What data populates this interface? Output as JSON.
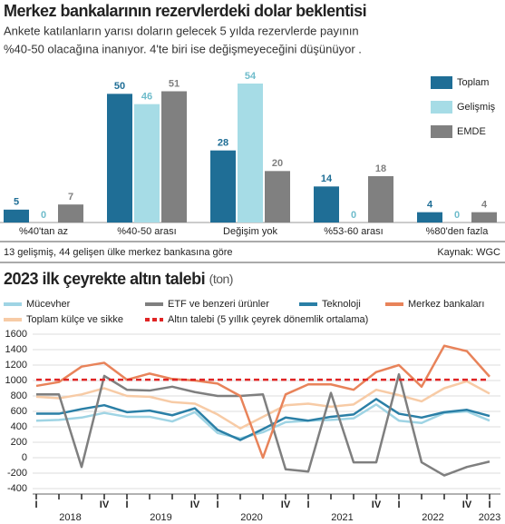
{
  "chart_data": [
    {
      "type": "bar",
      "title": "Merkez bankalarının rezervlerdeki dolar beklentisi",
      "subtitle": [
        "Ankete katılanların yarısı doların gelecek 5 yılda rezervlerde payının",
        "%40-50 olacağına inanıyor. 4'te biri ise değişmeyeceğini düşünüyor ."
      ],
      "categories": [
        "%40'tan az",
        "%40-50 arası",
        "Değişim yok",
        "%53-60 arası",
        "%80'den fazla"
      ],
      "series": [
        {
          "name": "Toplam",
          "color": "#1f6e96",
          "values": [
            5,
            50,
            28,
            14,
            4
          ]
        },
        {
          "name": "Gelişmiş",
          "color": "#a6dce6",
          "values": [
            0,
            46,
            54,
            0,
            0
          ]
        },
        {
          "name": "EMDE",
          "color": "#808080",
          "values": [
            7,
            51,
            20,
            18,
            4
          ]
        }
      ],
      "note": "13 gelişmiş, 44 gelişen ülke merkez bankasına göre",
      "source": "Kaynak: WGC"
    },
    {
      "type": "line",
      "title": "2023 ilk çeyrekte altın talebi",
      "unit": "(ton)",
      "categories": [
        "I",
        null,
        null,
        "IV",
        "I",
        null,
        null,
        "IV",
        "I",
        null,
        null,
        "IV",
        "I",
        null,
        null,
        "IV",
        "I",
        null,
        null,
        "IV",
        "I"
      ],
      "year_labels": [
        "2018",
        "2019",
        "2020",
        "2021",
        "2022",
        "2023"
      ],
      "series": [
        {
          "name": "Mücevher",
          "color": "#9fd4e4",
          "values": [
            480,
            490,
            520,
            580,
            530,
            530,
            470,
            590,
            320,
            250,
            330,
            460,
            480,
            490,
            510,
            690,
            480,
            450,
            580,
            600,
            480
          ]
        },
        {
          "name": "ETF ve benzeri ürünler",
          "color": "#7f7f7f",
          "values": [
            820,
            820,
            -120,
            1060,
            880,
            870,
            920,
            850,
            800,
            800,
            820,
            -150,
            -180,
            840,
            -60,
            -60,
            1080,
            -60,
            -230,
            -120,
            -50
          ]
        },
        {
          "name": "Teknoloji",
          "color": "#2a7fa6",
          "values": [
            570,
            570,
            630,
            680,
            590,
            610,
            550,
            640,
            360,
            230,
            370,
            520,
            480,
            530,
            560,
            760,
            570,
            520,
            590,
            620,
            540
          ]
        },
        {
          "name": "Merkez bankaları",
          "color": "#e8835a",
          "values": [
            930,
            980,
            1180,
            1230,
            1010,
            1090,
            1020,
            1000,
            960,
            800,
            0,
            820,
            950,
            950,
            880,
            1110,
            1200,
            920,
            1450,
            1380,
            1050
          ]
        },
        {
          "name": "Toplam külçe ve sikke",
          "color": "#f7cba6",
          "values": [
            790,
            770,
            820,
            900,
            800,
            790,
            720,
            700,
            560,
            380,
            530,
            680,
            700,
            660,
            690,
            880,
            810,
            730,
            900,
            990,
            830
          ]
        },
        {
          "name": "Altın talebi (5 yıllık çeyrek dönemlik ortalama)",
          "color": "#e02424",
          "line_style": "dashed",
          "values": [
            1010,
            1010,
            1010,
            1010,
            1010,
            1010,
            1010,
            1010,
            1010,
            1010,
            1010,
            1010,
            1010,
            1010,
            1010,
            1010,
            1010,
            1010,
            1010,
            1010,
            1010
          ]
        }
      ],
      "ylim": [
        -400,
        1600
      ],
      "yticks": [
        -400,
        -200,
        0,
        200,
        400,
        600,
        800,
        1000,
        1200,
        1400,
        1600
      ],
      "grid": true
    }
  ]
}
